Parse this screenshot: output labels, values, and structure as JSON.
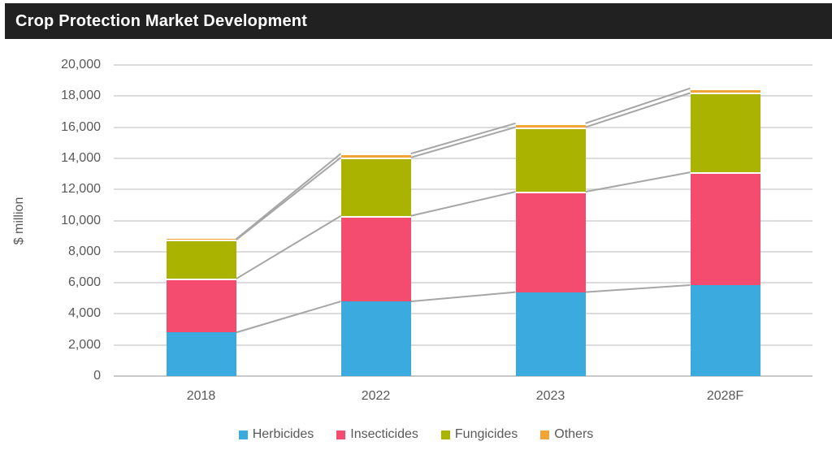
{
  "title_bar": {
    "title": "Crop Protection Market Development"
  },
  "chart_data": {
    "type": "bar",
    "stacked": true,
    "title": "Crop Protection Market Development",
    "categories": [
      "2018",
      "2022",
      "2023",
      "2028F"
    ],
    "series": [
      {
        "name": "Herbicides",
        "color": "#3BAADF",
        "values": [
          2800,
          4800,
          5400,
          5850
        ]
      },
      {
        "name": "Insecticides",
        "color": "#F44C6E",
        "values": [
          3450,
          5500,
          6450,
          7250
        ]
      },
      {
        "name": "Fungicides",
        "color": "#AAB300",
        "values": [
          2500,
          3750,
          4150,
          5100
        ]
      },
      {
        "name": "Others",
        "color": "#F2A437",
        "values": [
          50,
          250,
          250,
          300
        ]
      }
    ],
    "ylabel": "$ million",
    "ylim": [
      0,
      20000
    ],
    "ytick_step": 2000,
    "ytick_labels": [
      "0",
      "2,000",
      "4,000",
      "6,000",
      "8,000",
      "10,000",
      "12,000",
      "14,000",
      "16,000",
      "18,000",
      "20,000"
    ],
    "grid": true,
    "legend_position": "bottom",
    "series_connector_lines": true
  },
  "colors": {
    "title_bg": "#212121",
    "title_fg": "#FFFFFF",
    "gridline": "#DCDCDC",
    "axis_line": "#C8C8C8",
    "connector_line": "#A6A6A6",
    "tick_text": "#595959",
    "legend_text": "#595959",
    "segment_separator": "#FFFFFF"
  }
}
